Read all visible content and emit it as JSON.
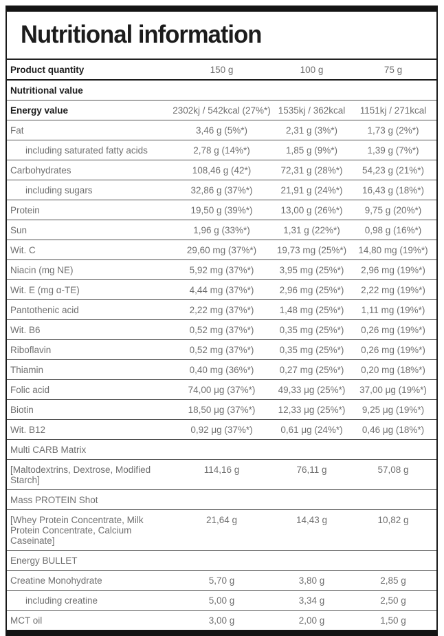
{
  "title": "Nutritional information",
  "colors": {
    "frame_border": "#141414",
    "heavy_separator": "#1c1c1c",
    "row_separator": "#4f4f4f",
    "label_bold_text": "#1d1d1d",
    "body_text_gray": "#6f6f6f",
    "background": "#ffffff"
  },
  "table": {
    "rows": [
      {
        "label": "Product quantity",
        "values": [
          "150 g",
          "100 g",
          "75 g"
        ],
        "bold": true,
        "heavy": true
      },
      {
        "label": "Nutritional value",
        "section": true,
        "bold": true
      },
      {
        "label": "Energy value",
        "values": [
          "2302kj / 542kcal (27%*)",
          "1535kj / 362kcal",
          "1151kj / 271kcal"
        ],
        "bold": true
      },
      {
        "label": "Fat",
        "values": [
          "3,46 g (5%*)",
          "2,31 g (3%*)",
          "1,73 g (2%*)"
        ]
      },
      {
        "label": "including saturated fatty acids",
        "values": [
          "2,78 g (14%*)",
          "1,85 g (9%*)",
          "1,39 g (7%*)"
        ],
        "indent": true
      },
      {
        "label": "Carbohydrates",
        "values": [
          "108,46 g (42*)",
          "72,31 g (28%*)",
          "54,23 g (21%*)"
        ]
      },
      {
        "label": "including sugars",
        "values": [
          "32,86 g (37%*)",
          "21,91 g (24%*)",
          "16,43 g (18%*)"
        ],
        "indent": true
      },
      {
        "label": "Protein",
        "values": [
          "19,50 g (39%*)",
          "13,00 g (26%*)",
          "9,75 g (20%*)"
        ]
      },
      {
        "label": "Sun",
        "values": [
          "1,96 g (33%*)",
          "1,31 g (22%*)",
          "0,98 g (16%*)"
        ]
      },
      {
        "label": "Wit. C",
        "values": [
          "29,60 mg (37%*)",
          "19,73 mg (25%*)",
          "14,80 mg (19%*)"
        ]
      },
      {
        "label": "Niacin (mg NE)",
        "values": [
          "5,92 mg (37%*)",
          "3,95 mg (25%*)",
          "2,96 mg (19%*)"
        ]
      },
      {
        "label": "Wit. E (mg α-TE)",
        "values": [
          "4,44 mg (37%*)",
          "2,96 mg (25%*)",
          "2,22 mg (19%*)"
        ]
      },
      {
        "label": "Pantothenic acid",
        "values": [
          "2,22 mg (37%*)",
          "1,48 mg (25%*)",
          "1,11 mg (19%*)"
        ]
      },
      {
        "label": "Wit. B6",
        "values": [
          "0,52 mg (37%*)",
          "0,35 mg (25%*)",
          "0,26 mg (19%*)"
        ]
      },
      {
        "label": "Riboflavin",
        "values": [
          "0,52 mg (37%*)",
          "0,35 mg (25%*)",
          "0,26 mg (19%*)"
        ]
      },
      {
        "label": "Thiamin",
        "values": [
          "0,40 mg (36%*)",
          "0,27 mg (25%*)",
          "0,20 mg (18%*)"
        ]
      },
      {
        "label": "Folic acid",
        "values": [
          "74,00 μg (37%*)",
          "49,33 μg (25%*)",
          "37,00 μg (19%*)"
        ]
      },
      {
        "label": "Biotin",
        "values": [
          "18,50 μg (37%*)",
          "12,33 μg (25%*)",
          "9,25 μg (19%*)"
        ]
      },
      {
        "label": "Wit. B12",
        "values": [
          "0,92 μg (37%*)",
          "0,61 μg (24%*)",
          "0,46 μg (18%*)"
        ]
      },
      {
        "label": "Multi CARB Matrix",
        "section": true
      },
      {
        "label": "[Maltodextrins, Dextrose, Modified Starch]",
        "values": [
          "114,16 g",
          "76,11 g",
          "57,08 g"
        ]
      },
      {
        "label": "Mass PROTEIN Shot",
        "section": true
      },
      {
        "label": "[Whey Protein Concentrate, Milk Protein Concentrate, Calcium Caseinate]",
        "values": [
          "21,64 g",
          "14,43 g",
          "10,82 g"
        ]
      },
      {
        "label": "Energy BULLET",
        "section": true
      },
      {
        "label": "Creatine Monohydrate",
        "values": [
          "5,70 g",
          "3,80 g",
          "2,85 g"
        ]
      },
      {
        "label": "including creatine",
        "values": [
          "5,00 g",
          "3,34 g",
          "2,50 g"
        ],
        "indent": true
      },
      {
        "label": "MCT oil",
        "values": [
          "3,00 g",
          "2,00 g",
          "1,50 g"
        ]
      }
    ]
  }
}
